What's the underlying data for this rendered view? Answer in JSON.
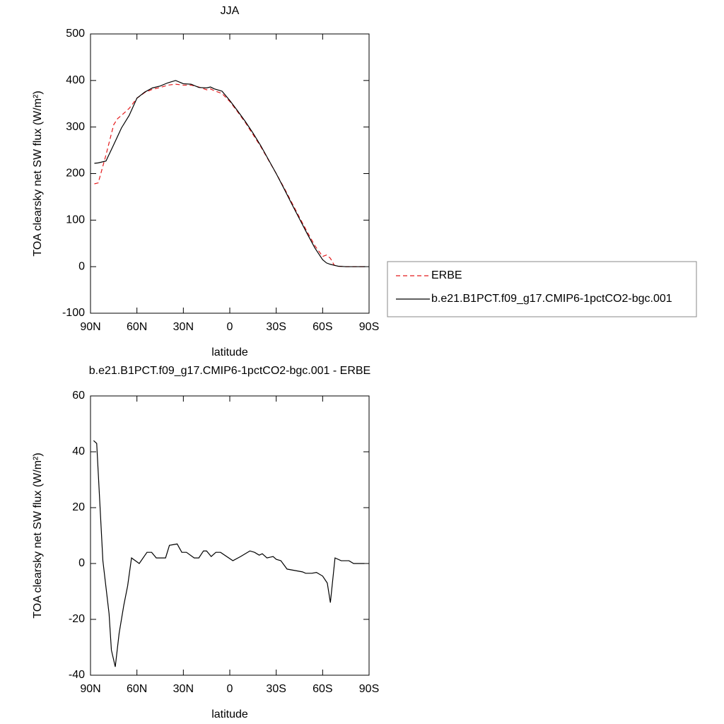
{
  "chart_data": [
    {
      "type": "line",
      "title": "JJA",
      "x_label": "latitude",
      "y_label": "TOA clearsky net SW flux (W/m²)",
      "x": [
        87.5,
        85,
        80,
        75,
        72.5,
        70,
        65,
        60,
        55,
        50,
        45,
        40,
        35,
        30,
        25,
        20,
        15,
        12.5,
        10,
        5,
        0,
        -5,
        -10,
        -15,
        -20,
        -25,
        -30,
        -35,
        -40,
        -45,
        -50,
        -55,
        -60,
        -62.5,
        -65,
        -67.5,
        -70,
        -75,
        -80,
        -85,
        -87.5
      ],
      "series": [
        {
          "name": "ERBE",
          "color": "#e41a1c",
          "line_style": "dashed",
          "values": [
            178,
            180,
            240,
            305,
            318,
            325,
            340,
            362,
            374,
            381,
            385,
            390,
            392,
            390,
            390,
            386,
            380,
            382,
            378,
            372,
            355,
            333,
            310,
            284,
            258,
            229,
            200,
            170,
            138,
            106,
            75,
            45,
            22,
            25,
            18,
            3,
            1,
            0,
            0,
            0,
            0
          ]
        },
        {
          "name": "b.e21.B1PCT.f09_g17.CMIP6-1pctCO2-bgc.001",
          "color": "#000000",
          "line_style": "solid",
          "values": [
            222,
            223,
            227,
            262,
            280,
            298,
            325,
            362,
            375,
            384,
            388,
            395,
            400,
            393,
            392,
            385,
            384,
            386,
            382,
            377,
            357,
            335,
            312,
            287,
            260,
            230,
            200,
            168,
            135,
            103,
            71,
            40,
            15,
            8,
            5,
            3,
            1,
            0,
            0,
            0,
            0
          ]
        }
      ],
      "xlim": [
        90,
        -90
      ],
      "xticks": [
        {
          "value": 90,
          "label": "90N"
        },
        {
          "value": 60,
          "label": "60N"
        },
        {
          "value": 30,
          "label": "30N"
        },
        0,
        {
          "value": -30,
          "label": "30S"
        },
        {
          "value": -60,
          "label": "60S"
        },
        {
          "value": -90,
          "label": "90S"
        }
      ],
      "ylim": [
        -100,
        500
      ],
      "yticks": [
        -100,
        0,
        100,
        200,
        300,
        400,
        500
      ],
      "legend": "right"
    },
    {
      "type": "line",
      "title": "b.e21.B1PCT.f09_g17.CMIP6-1pctCO2-bgc.001 - ERBE",
      "x_label": "latitude",
      "y_label": "TOA clearsky net SW flux (W/m²)",
      "x": [
        88,
        86,
        82,
        78,
        76.5,
        74,
        71.5,
        68.5,
        66,
        63.5,
        58.5,
        53.5,
        50.5,
        47.5,
        41.5,
        39,
        34,
        31,
        28,
        23,
        20,
        17,
        15,
        12,
        9,
        6,
        -2,
        -7,
        -13,
        -16,
        -19,
        -21,
        -24,
        -28,
        -30,
        -33,
        -37,
        -42,
        -47,
        -49,
        -53,
        -56,
        -60,
        -63,
        -65,
        -68,
        -72,
        -77,
        -80,
        -83,
        -87
      ],
      "values": [
        44,
        43,
        1,
        -18,
        -31,
        -37,
        -25,
        -15,
        -8,
        2,
        0,
        4,
        4,
        2,
        2,
        6.5,
        7,
        4,
        4,
        2,
        2,
        4.5,
        4.5,
        2.5,
        4,
        4,
        1,
        2.5,
        4.5,
        4,
        3,
        3.5,
        2,
        2.5,
        1.5,
        1,
        -2,
        -2.5,
        -3,
        -3.5,
        -3.5,
        -3.2,
        -4.5,
        -7,
        -14,
        2,
        1,
        1,
        0,
        0,
        0
      ],
      "color": "#000000",
      "xlim": [
        90,
        -90
      ],
      "xticks": [
        {
          "value": 90,
          "label": "90N"
        },
        {
          "value": 60,
          "label": "60N"
        },
        {
          "value": 30,
          "label": "30N"
        },
        0,
        {
          "value": -30,
          "label": "30S"
        },
        {
          "value": -60,
          "label": "60S"
        },
        {
          "value": -90,
          "label": "90S"
        }
      ],
      "ylim": [
        -40,
        60
      ],
      "yticks": [
        -40,
        -20,
        0,
        20,
        40,
        60
      ]
    }
  ]
}
